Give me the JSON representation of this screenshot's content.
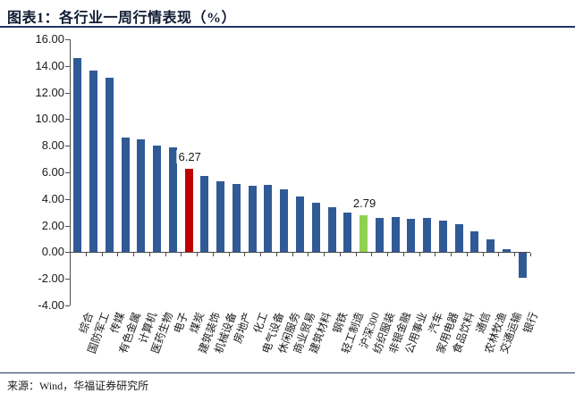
{
  "header": {
    "title": "图表1：各行业一周行情表现（%）"
  },
  "footer": {
    "source": "来源：Wind，华福证券研究所"
  },
  "colors": {
    "bar_default": "#305A96",
    "bar_highlight_red": "#C00000",
    "bar_highlight_green": "#92D050",
    "accent_navy": "#1F3864",
    "axis": "#4d4d4d"
  },
  "chart_data": {
    "type": "bar",
    "title": "各行业一周行情表现（%）",
    "categories": [
      "综合",
      "国防军工",
      "传媒",
      "有色金属",
      "计算机",
      "医药生物",
      "电子",
      "煤炭",
      "建筑装饰",
      "机械设备",
      "房地产",
      "化工",
      "电气设备",
      "休闲服务",
      "商业贸易",
      "建筑材料",
      "钢铁",
      "轻工制造",
      "沪深300",
      "纺织服装",
      "非银金融",
      "公用事业",
      "汽车",
      "家用电器",
      "食品饮料",
      "通信",
      "农林牧渔",
      "交通运输",
      "银行"
    ],
    "values": [
      14.6,
      13.65,
      13.1,
      8.65,
      8.5,
      8.0,
      7.85,
      6.27,
      5.7,
      5.35,
      5.13,
      5.02,
      5.04,
      4.7,
      4.2,
      3.72,
      3.4,
      2.96,
      2.79,
      2.6,
      2.64,
      2.53,
      2.58,
      2.35,
      2.08,
      1.6,
      0.96,
      0.25,
      -1.88
    ],
    "color_overrides": {
      "煤炭": "#C00000",
      "沪深300": "#92D050"
    },
    "data_labels": [
      {
        "category": "煤炭",
        "text": "6.27"
      },
      {
        "category": "沪深300",
        "text": "2.79"
      }
    ],
    "y_ticks": [
      "16.00",
      "14.00",
      "12.00",
      "10.00",
      "8.00",
      "6.00",
      "4.00",
      "2.00",
      "0.00",
      "-2.00",
      "-4.00"
    ],
    "ylim": [
      -4,
      16
    ],
    "xlabel": "",
    "ylabel": "",
    "grid": false,
    "legend": "none"
  }
}
